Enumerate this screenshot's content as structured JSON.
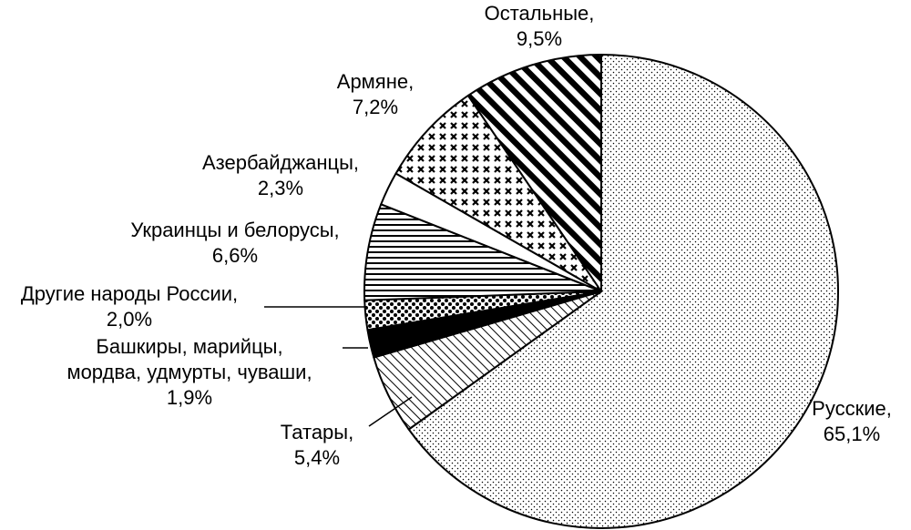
{
  "chart_data": {
    "type": "pie",
    "title": "",
    "slices": [
      {
        "name": "Русские",
        "value": 65.1,
        "value_label": "65,1%",
        "pattern": "dots-fine"
      },
      {
        "name": "Татары",
        "value": 5.4,
        "value_label": "5,4%",
        "pattern": "diagonal-lines"
      },
      {
        "name": "Башкиры, марийцы, мордва, удмурты, чуваши",
        "value": 1.9,
        "value_label": "1,9%",
        "pattern": "solid-black"
      },
      {
        "name": "Другие народы России",
        "value": 2.0,
        "value_label": "2,0%",
        "pattern": "dots-large"
      },
      {
        "name": "Украинцы и белорусы",
        "value": 6.6,
        "value_label": "6,6%",
        "pattern": "horizontal-lines"
      },
      {
        "name": "Азербайджанцы",
        "value": 2.3,
        "value_label": "2,3%",
        "pattern": "white"
      },
      {
        "name": "Армяне",
        "value": 7.2,
        "value_label": "7,2%",
        "pattern": "crosses"
      },
      {
        "name": "Остальные",
        "value": 9.5,
        "value_label": "9,5%",
        "pattern": "diagonal-bold"
      }
    ],
    "label_lines": [
      [
        "Русские,",
        "65,1%"
      ],
      [
        "Татары,",
        "5,4%"
      ],
      [
        "Башкиры, марийцы,",
        "мордва, удмурты, чуваши,",
        "1,9%"
      ],
      [
        "Другие народы России,",
        "2,0%"
      ],
      [
        "Украинцы и белорусы,",
        "6,6%"
      ],
      [
        "Азербайджанцы,",
        "2,3%"
      ],
      [
        "Армяне,",
        "7,2%"
      ],
      [
        "Остальные,",
        "9,5%"
      ]
    ],
    "start": "12 o'clock",
    "direction": "clockwise",
    "colors": {
      "ink": "#000000",
      "background": "#ffffff"
    }
  }
}
